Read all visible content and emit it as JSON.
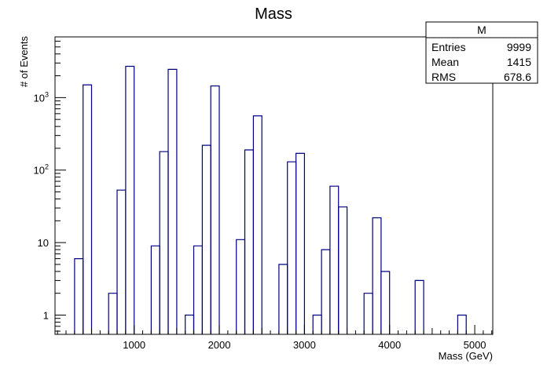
{
  "chart_data": {
    "type": "histogram",
    "title": "Mass",
    "xlabel": "Mass (GeV)",
    "ylabel": "# of Events",
    "x_ticks": [
      "1000",
      "2000",
      "3000",
      "4000",
      "5000"
    ],
    "y_scale": "log",
    "y_ticks": [
      "1",
      "10",
      "10²",
      "10³"
    ],
    "grid": false,
    "legend": "none",
    "line_color": "#000080",
    "bins": [
      {
        "x0": 300,
        "x1": 400,
        "count": 6
      },
      {
        "x0": 400,
        "x1": 500,
        "count": 1500
      },
      {
        "x0": 700,
        "x1": 800,
        "count": 2
      },
      {
        "x0": 800,
        "x1": 900,
        "count": 53
      },
      {
        "x0": 900,
        "x1": 1000,
        "count": 2700
      },
      {
        "x0": 1200,
        "x1": 1300,
        "count": 9
      },
      {
        "x0": 1300,
        "x1": 1400,
        "count": 180
      },
      {
        "x0": 1400,
        "x1": 1500,
        "count": 2450
      },
      {
        "x0": 1600,
        "x1": 1700,
        "count": 1
      },
      {
        "x0": 1700,
        "x1": 1800,
        "count": 9
      },
      {
        "x0": 1800,
        "x1": 1900,
        "count": 220
      },
      {
        "x0": 1900,
        "x1": 2000,
        "count": 1450
      },
      {
        "x0": 2200,
        "x1": 2300,
        "count": 11
      },
      {
        "x0": 2300,
        "x1": 2400,
        "count": 190
      },
      {
        "x0": 2400,
        "x1": 2500,
        "count": 560
      },
      {
        "x0": 2700,
        "x1": 2800,
        "count": 5
      },
      {
        "x0": 2800,
        "x1": 2900,
        "count": 130
      },
      {
        "x0": 2900,
        "x1": 3000,
        "count": 170
      },
      {
        "x0": 3100,
        "x1": 3200,
        "count": 1
      },
      {
        "x0": 3200,
        "x1": 3300,
        "count": 8
      },
      {
        "x0": 3300,
        "x1": 3400,
        "count": 60
      },
      {
        "x0": 3400,
        "x1": 3500,
        "count": 31
      },
      {
        "x0": 3700,
        "x1": 3800,
        "count": 2
      },
      {
        "x0": 3800,
        "x1": 3900,
        "count": 22
      },
      {
        "x0": 3900,
        "x1": 4000,
        "count": 4
      },
      {
        "x0": 4300,
        "x1": 4400,
        "count": 3
      },
      {
        "x0": 4800,
        "x1": 4900,
        "count": 1
      }
    ]
  },
  "stats_box": {
    "title": "M",
    "rows": [
      {
        "label": "Entries",
        "value": "9999"
      },
      {
        "label": "Mean",
        "value": "1415"
      },
      {
        "label": "RMS",
        "value": "678.6"
      }
    ]
  }
}
